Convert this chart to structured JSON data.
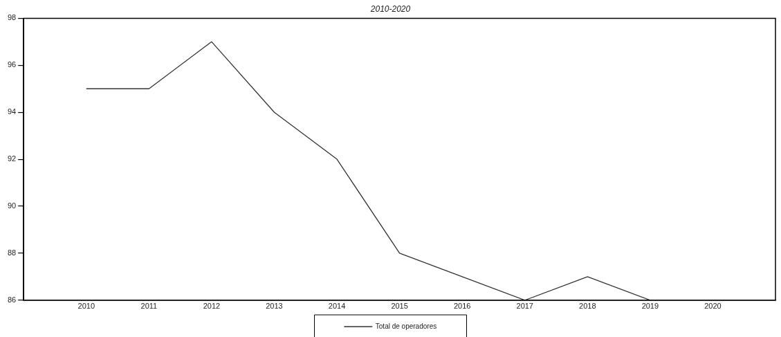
{
  "chart_data": {
    "type": "line",
    "title": "2010-2020",
    "x": [
      2010,
      2011,
      2012,
      2013,
      2014,
      2015,
      2016,
      2017,
      2018,
      2019
    ],
    "series": [
      {
        "name": "Total de operadores",
        "color": "#333333",
        "values": [
          95,
          95,
          97,
          94,
          92,
          88,
          87,
          86,
          87,
          86
        ]
      }
    ],
    "xlim": [
      2009,
      2021
    ],
    "xticks": [
      2010,
      2011,
      2012,
      2013,
      2014,
      2015,
      2016,
      2017,
      2018,
      2019,
      2020
    ],
    "ylim": [
      86,
      98
    ],
    "yticks": [
      86,
      88,
      90,
      92,
      94,
      96,
      98
    ],
    "grid": false,
    "legend": "bottom",
    "marker": "none",
    "line_style": "solid"
  }
}
